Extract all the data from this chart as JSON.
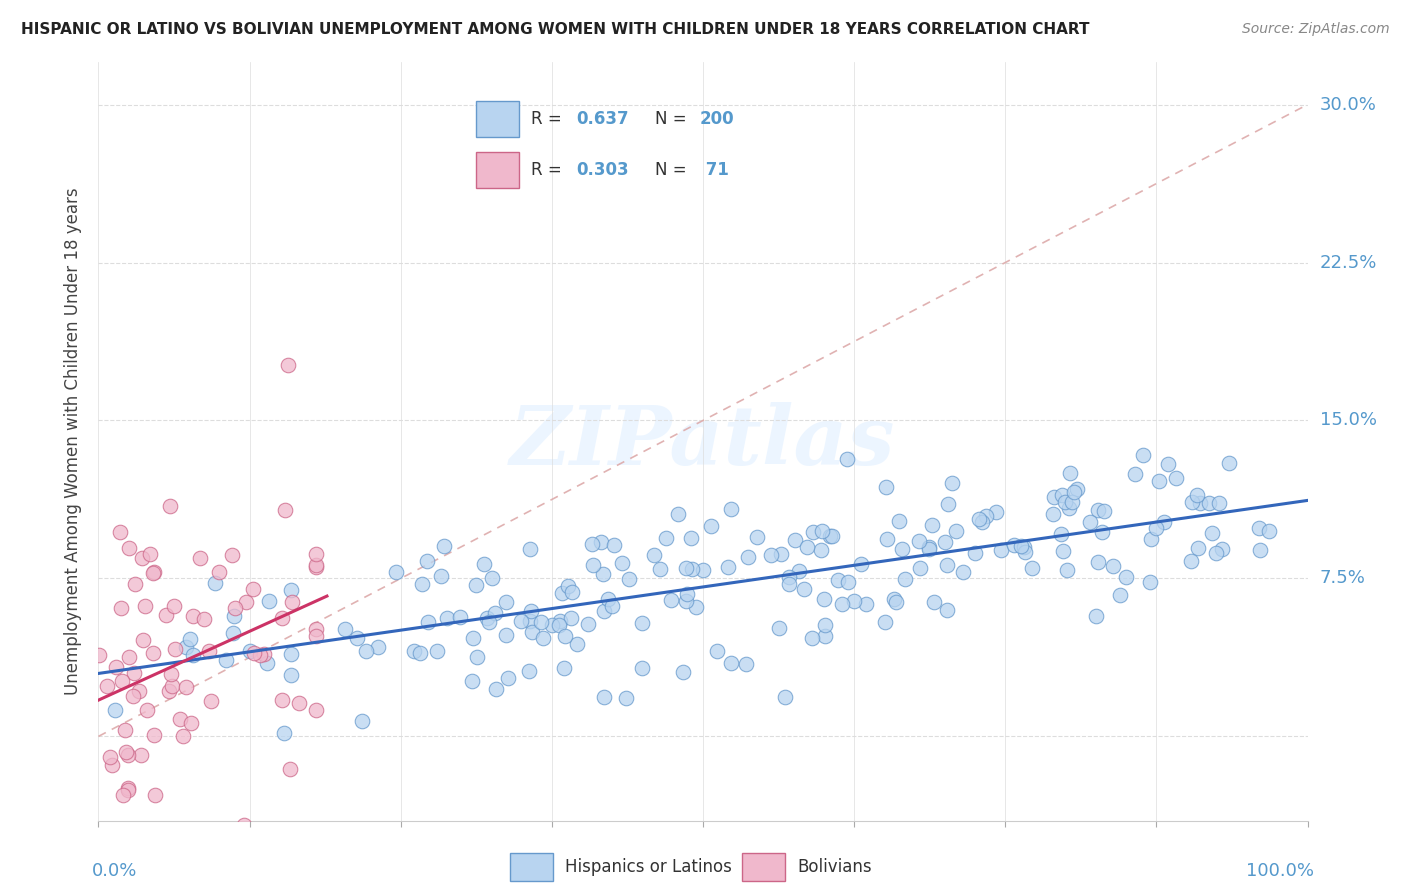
{
  "title": "HISPANIC OR LATINO VS BOLIVIAN UNEMPLOYMENT AMONG WOMEN WITH CHILDREN UNDER 18 YEARS CORRELATION CHART",
  "source": "Source: ZipAtlas.com",
  "ylabel": "Unemployment Among Women with Children Under 18 years",
  "legend_blue_label": "Hispanics or Latinos",
  "legend_pink_label": "Bolivians",
  "blue_color": "#b8d4f0",
  "blue_edge_color": "#6699cc",
  "pink_color": "#f0b8cc",
  "pink_edge_color": "#cc6688",
  "blue_line_color": "#3366bb",
  "pink_line_color": "#cc3366",
  "diag_color": "#ddaaaa",
  "watermark_color": "#ddeeff",
  "background_color": "#ffffff",
  "grid_color": "#dddddd",
  "ytick_color": "#5599cc",
  "xlim": [
    0.0,
    1.0
  ],
  "ylim": [
    -0.04,
    0.32
  ],
  "yticks": [
    0.0,
    0.075,
    0.15,
    0.225,
    0.3
  ],
  "ytick_labels": [
    "",
    "7.5%",
    "15.0%",
    "22.5%",
    "30.0%"
  ],
  "n_blue": 200,
  "n_pink": 71,
  "r_blue": 0.637,
  "r_pink": 0.303
}
